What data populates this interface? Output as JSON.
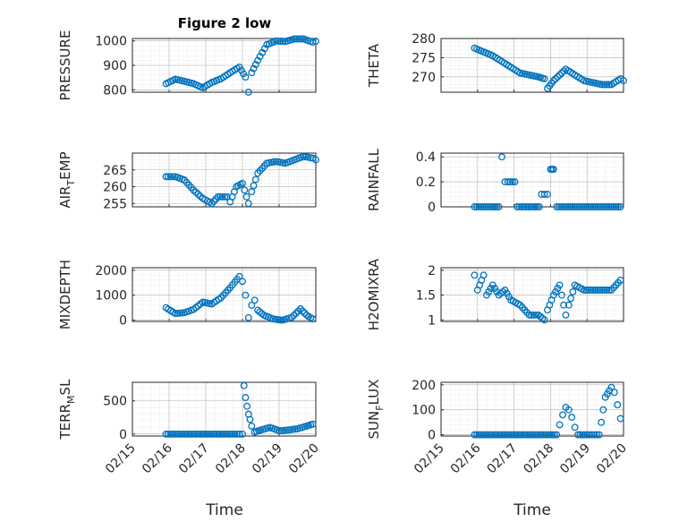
{
  "figure": {
    "title": "Figure 2 low",
    "xlabel": "Time",
    "xticks": [
      "02/15",
      "02/16",
      "02/17",
      "02/18",
      "02/19",
      "02/20"
    ],
    "marker_color": "#0072BD"
  },
  "chart_data": [
    {
      "type": "scatter",
      "panel": "top-left",
      "ylabel": "PRESSURE",
      "subscript": null,
      "ylim": [
        790,
        1010
      ],
      "yticks": [
        800,
        900,
        1000
      ],
      "x": [
        "02/15 22:00",
        "02/16 04:00",
        "02/16 10:00",
        "02/16 16:00",
        "02/16 22:00",
        "02/17 04:00",
        "02/17 10:00",
        "02/17 16:00",
        "02/17 22:00",
        "02/18 02:00",
        "02/18 04:00",
        "02/18 06:00",
        "02/18 10:00",
        "02/18 16:00",
        "02/18 22:00",
        "02/19 04:00",
        "02/19 10:00",
        "02/19 16:00",
        "02/19 22:00",
        "02/20 00:00"
      ],
      "y": [
        825,
        843,
        835,
        825,
        808,
        830,
        845,
        870,
        893,
        852,
        790,
        870,
        920,
        985,
        1000,
        998,
        1008,
        1008,
        995,
        999
      ]
    },
    {
      "type": "scatter",
      "panel": "top-right",
      "ylabel": "THETA",
      "subscript": null,
      "ylim": [
        266,
        280
      ],
      "yticks": [
        270,
        275,
        280
      ],
      "x": [
        "02/15 22:00",
        "02/16 04:00",
        "02/16 10:00",
        "02/16 16:00",
        "02/16 22:00",
        "02/17 04:00",
        "02/17 10:00",
        "02/17 16:00",
        "02/17 20:00",
        "02/17 22:00",
        "02/18 02:00",
        "02/18 06:00",
        "02/18 10:00",
        "02/18 16:00",
        "02/18 22:00",
        "02/19 04:00",
        "02/19 10:00",
        "02/19 16:00",
        "02/19 22:00",
        "02/20 00:00"
      ],
      "y": [
        277.5,
        276.5,
        275.5,
        274,
        272.5,
        271,
        270.5,
        270,
        269.5,
        267,
        269,
        270.5,
        272,
        270.5,
        269,
        268.5,
        268,
        268,
        269.5,
        269
      ]
    },
    {
      "type": "scatter",
      "panel": "mid-left",
      "ylabel": "AIR",
      "subscript": "T",
      "ylabel_suffix": "EMP",
      "ylim": [
        254,
        270
      ],
      "yticks": [
        255,
        260,
        265
      ],
      "x": [
        "02/15 22:00",
        "02/16 04:00",
        "02/16 10:00",
        "02/16 16:00",
        "02/16 22:00",
        "02/17 04:00",
        "02/17 08:00",
        "02/17 14:00",
        "02/17 16:00",
        "02/17 20:00",
        "02/18 00:00",
        "02/18 04:00",
        "02/18 06:00",
        "02/18 10:00",
        "02/18 16:00",
        "02/18 22:00",
        "02/19 04:00",
        "02/19 10:00",
        "02/19 16:00",
        "02/19 22:00",
        "02/20 00:00"
      ],
      "y": [
        263,
        263,
        262,
        259,
        256.5,
        255,
        257,
        257,
        255.5,
        260,
        261,
        255,
        258.5,
        264,
        267,
        267.5,
        267,
        268,
        269,
        268.5,
        268
      ]
    },
    {
      "type": "scatter",
      "panel": "mid-right",
      "ylabel": "RAINFALL",
      "subscript": null,
      "ylim": [
        0,
        0.43
      ],
      "yticks": [
        0,
        0.2,
        0.4
      ],
      "x": [
        "02/15 22:00",
        "02/16 04:00",
        "02/16 10:00",
        "02/16 14:00",
        "02/16 16:00",
        "02/16 18:00",
        "02/16 20:00",
        "02/17 02:00",
        "02/17 08:00",
        "02/17 14:00",
        "02/17 18:00",
        "02/17 20:00",
        "02/17 22:00",
        "02/18 00:00",
        "02/18 01:00",
        "02/18 02:00",
        "02/18 04:00",
        "02/18 10:00",
        "02/18 16:00",
        "02/18 22:00",
        "02/19 04:00",
        "02/19 10:00",
        "02/19 16:00",
        "02/19 22:00"
      ],
      "y": [
        0,
        0,
        0,
        0,
        0.4,
        0.2,
        0.2,
        0,
        0,
        0,
        0.1,
        0.1,
        0.1,
        0.3,
        0.3,
        0.3,
        0,
        0,
        0,
        0,
        0,
        0,
        0,
        0
      ]
    },
    {
      "type": "scatter",
      "panel": "lower-left",
      "ylabel": "MIXDEPTH",
      "subscript": null,
      "ylim": [
        -50,
        2100
      ],
      "yticks": [
        0,
        1000,
        2000
      ],
      "x": [
        "02/15 22:00",
        "02/16 04:00",
        "02/16 10:00",
        "02/16 16:00",
        "02/16 22:00",
        "02/17 04:00",
        "02/17 10:00",
        "02/17 16:00",
        "02/17 22:00",
        "02/18 00:00",
        "02/18 02:00",
        "02/18 04:00",
        "02/18 06:00",
        "02/18 08:00",
        "02/18 10:00",
        "02/18 14:00",
        "02/18 20:00",
        "02/19 02:00",
        "02/19 08:00",
        "02/19 14:00",
        "02/19 18:00",
        "02/19 22:00"
      ],
      "y": [
        500,
        270,
        300,
        430,
        720,
        650,
        900,
        1300,
        1750,
        1550,
        1000,
        100,
        600,
        800,
        400,
        200,
        50,
        0,
        100,
        450,
        200,
        50
      ]
    },
    {
      "type": "scatter",
      "panel": "lower-right",
      "ylabel": "H2OMIXRA",
      "subscript": null,
      "ylim": [
        0.97,
        2.05
      ],
      "yticks": [
        1,
        1.5,
        2
      ],
      "x": [
        "02/15 22:00",
        "02/16 00:00",
        "02/16 04:00",
        "02/16 06:00",
        "02/16 10:00",
        "02/16 14:00",
        "02/16 18:00",
        "02/16 22:00",
        "02/17 04:00",
        "02/17 10:00",
        "02/17 16:00",
        "02/17 20:00",
        "02/17 22:00",
        "02/18 02:00",
        "02/18 06:00",
        "02/18 10:00",
        "02/18 12:00",
        "02/18 16:00",
        "02/18 22:00",
        "02/19 04:00",
        "02/19 10:00",
        "02/19 16:00",
        "02/19 22:00"
      ],
      "y": [
        1.9,
        1.6,
        1.9,
        1.5,
        1.7,
        1.5,
        1.6,
        1.4,
        1.3,
        1.1,
        1.1,
        1.0,
        1.2,
        1.5,
        1.7,
        1.1,
        1.3,
        1.7,
        1.6,
        1.6,
        1.6,
        1.6,
        1.8
      ]
    },
    {
      "type": "scatter",
      "panel": "bottom-left",
      "ylabel": "TERR",
      "subscript": "M",
      "ylabel_suffix": "SL",
      "ylim": [
        -30,
        780
      ],
      "yticks": [
        0,
        500
      ],
      "x": [
        "02/15 22:00",
        "02/16 04:00",
        "02/16 10:00",
        "02/16 16:00",
        "02/16 22:00",
        "02/17 04:00",
        "02/17 10:00",
        "02/17 16:00",
        "02/17 22:00",
        "02/18 00:00",
        "02/18 01:00",
        "02/18 02:00",
        "02/18 03:00",
        "02/18 04:00",
        "02/18 05:00",
        "02/18 06:00",
        "02/18 08:00",
        "02/18 12:00",
        "02/18 18:00",
        "02/19 00:00",
        "02/19 06:00",
        "02/19 12:00",
        "02/19 18:00",
        "02/19 22:00"
      ],
      "y": [
        0,
        0,
        0,
        0,
        0,
        0,
        0,
        0,
        0,
        0,
        730,
        550,
        420,
        300,
        220,
        120,
        30,
        60,
        100,
        50,
        60,
        80,
        120,
        150
      ]
    },
    {
      "type": "scatter",
      "panel": "bottom-right",
      "ylabel": "SUN",
      "subscript": "F",
      "ylabel_suffix": "LUX",
      "ylim": [
        -5,
        210
      ],
      "yticks": [
        0,
        100,
        200
      ],
      "x": [
        "02/15 22:00",
        "02/16 04:00",
        "02/16 10:00",
        "02/16 16:00",
        "02/16 22:00",
        "02/17 04:00",
        "02/17 10:00",
        "02/17 16:00",
        "02/17 22:00",
        "02/18 04:00",
        "02/18 06:00",
        "02/18 08:00",
        "02/18 10:00",
        "02/18 12:00",
        "02/18 14:00",
        "02/18 16:00",
        "02/18 18:00",
        "02/19 00:00",
        "02/19 08:00",
        "02/19 12:00",
        "02/19 16:00",
        "02/19 18:00",
        "02/19 20:00",
        "02/19 22:00"
      ],
      "y": [
        0,
        0,
        0,
        0,
        0,
        0,
        0,
        0,
        0,
        0,
        40,
        80,
        110,
        100,
        70,
        30,
        0,
        0,
        0,
        150,
        190,
        170,
        120,
        65
      ]
    }
  ]
}
